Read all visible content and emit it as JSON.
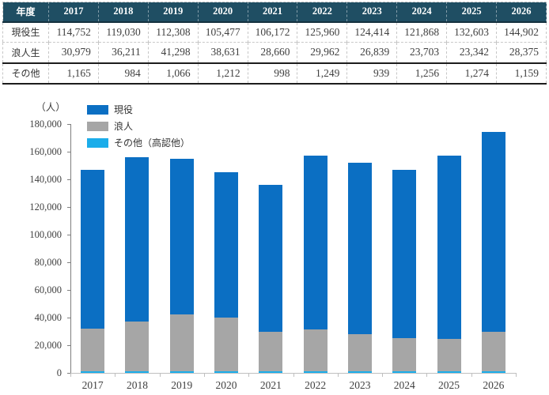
{
  "table": {
    "header_label": "年度",
    "years": [
      "2017",
      "2018",
      "2019",
      "2020",
      "2021",
      "2022",
      "2023",
      "2024",
      "2025",
      "2026"
    ],
    "rows": [
      {
        "id": "current-students",
        "label": "現役生",
        "values": [
          "114,752",
          "119,030",
          "112,308",
          "105,477",
          "106,172",
          "125,960",
          "124,414",
          "121,868",
          "132,603",
          "144,902"
        ]
      },
      {
        "id": "ronin-students",
        "label": "浪人生",
        "values": [
          "30,979",
          "36,211",
          "41,298",
          "38,631",
          "28,660",
          "29,962",
          "26,839",
          "23,703",
          "23,342",
          "28,375"
        ]
      },
      {
        "id": "others",
        "label": "その他",
        "values": [
          "1,165",
          "984",
          "1,066",
          "1,212",
          "998",
          "1,249",
          "939",
          "1,256",
          "1,274",
          "1,159"
        ]
      }
    ]
  },
  "chart": {
    "unit_label": "（人）",
    "legend": [
      {
        "id": "current",
        "label": "現役",
        "color": "#0b6fc3"
      },
      {
        "id": "ronin",
        "label": "浪人",
        "color": "#a6a6a6"
      },
      {
        "id": "other",
        "label": "その他（高認他）",
        "color": "#1badea"
      }
    ]
  },
  "chart_data": {
    "type": "bar",
    "stacked": true,
    "categories": [
      "2017",
      "2018",
      "2019",
      "2020",
      "2021",
      "2022",
      "2023",
      "2024",
      "2025",
      "2026"
    ],
    "series": [
      {
        "name": "現役",
        "id": "current",
        "color": "#0b6fc3",
        "values": [
          114752,
          119030,
          112308,
          105477,
          106172,
          125960,
          124414,
          121868,
          132603,
          144902
        ]
      },
      {
        "name": "浪人",
        "id": "ronin",
        "color": "#a6a6a6",
        "values": [
          30979,
          36211,
          41298,
          38631,
          28660,
          29962,
          26839,
          23703,
          23342,
          28375
        ]
      },
      {
        "name": "その他（高認他）",
        "id": "other",
        "color": "#1badea",
        "values": [
          1165,
          984,
          1066,
          1212,
          998,
          1249,
          939,
          1256,
          1274,
          1159
        ]
      }
    ],
    "stack_order_bottom_to_top": [
      "その他（高認他）",
      "浪人",
      "現役"
    ],
    "title": "",
    "xlabel": "",
    "ylabel": "（人）",
    "ylim": [
      0,
      180000
    ],
    "ytick_step": 20000,
    "grid": false,
    "legend_position": "top-left"
  },
  "colors": {
    "table_header_bg": "#1f4e63",
    "table_header_text": "#ffffff",
    "series_current": "#0b6fc3",
    "series_ronin": "#a6a6a6",
    "series_other": "#1badea",
    "axis_line": "#7f7f7f",
    "baseline": "#bfbfbf"
  }
}
